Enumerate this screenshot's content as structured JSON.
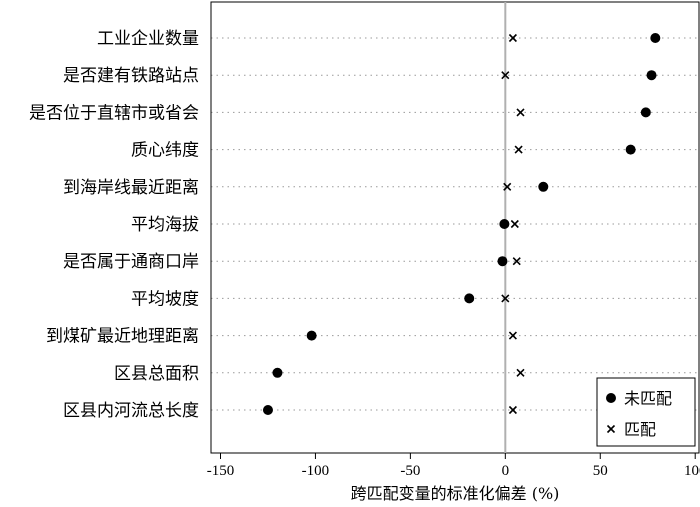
{
  "chart_data": {
    "type": "scatter",
    "title": "",
    "xlabel": "跨匹配变量的标准化偏差 (%)",
    "ylabel": "",
    "xlim": [
      -155,
      102
    ],
    "xticks": [
      -150,
      -100,
      -50,
      0,
      50,
      100
    ],
    "reference_line_x": 0,
    "grid": "dotted horizontal lines per category",
    "legend_position": "bottom-right",
    "categories": [
      "工业企业数量",
      "是否建有铁路站点",
      "是否位于直辖市或省会",
      "质心纬度",
      "到海岸线最近距离",
      "平均海拔",
      "是否属于通商口岸",
      "平均坡度",
      "到煤矿最近地理距离",
      "区县总面积",
      "区县内河流总长度"
    ],
    "series": [
      {
        "name": "未匹配",
        "marker": "circle",
        "color": "#000000",
        "values": [
          79,
          77,
          74,
          66,
          20,
          -0.5,
          -1.5,
          -19,
          -102,
          -120,
          -125
        ]
      },
      {
        "name": "匹配",
        "marker": "x",
        "color": "#000000",
        "values": [
          4,
          0,
          8,
          7,
          1,
          5,
          6,
          0,
          4,
          8,
          4
        ]
      }
    ]
  }
}
